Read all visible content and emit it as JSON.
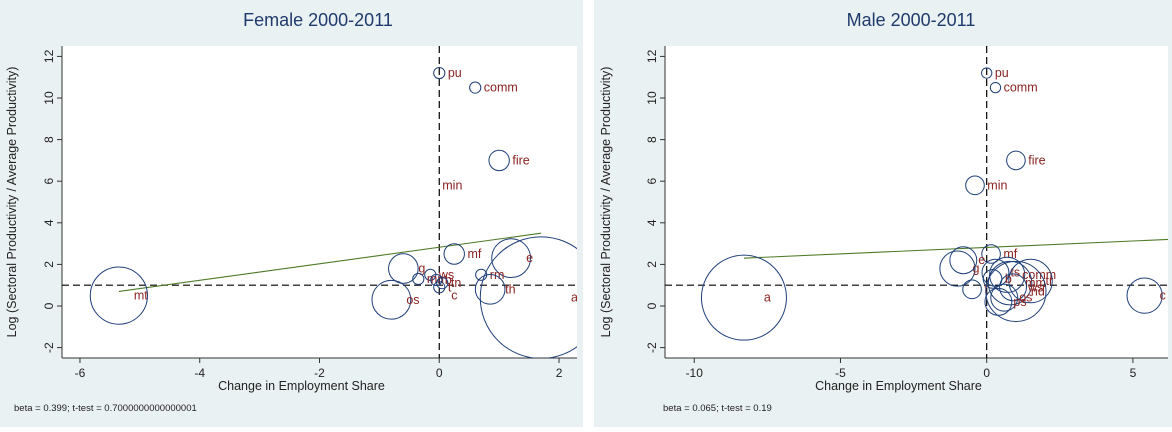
{
  "chart_data": [
    {
      "type": "scatter",
      "title": "Female  2000-2011",
      "xlabel": "Change in Employment Share",
      "ylabel": "Log (Sectoral Productivity / Average Productivity)",
      "xlim": [
        -6.3,
        2.3
      ],
      "ylim": [
        -2.5,
        12.5
      ],
      "xticks": [
        -6,
        -4,
        -2,
        0,
        2
      ],
      "yticks": [
        -2,
        0,
        2,
        4,
        6,
        8,
        10,
        12
      ],
      "reference_lines": {
        "x": 0,
        "y": 1
      },
      "fit_line": {
        "x": [
          -5.35,
          1.7
        ],
        "y": [
          0.7,
          3.5
        ]
      },
      "footnote": "beta = 0.399;  t-test = 0.7000000000000001",
      "points": [
        {
          "label": "pu",
          "x": 0.0,
          "y": 11.2,
          "size": 1
        },
        {
          "label": "comm",
          "x": 0.6,
          "y": 10.5,
          "size": 1
        },
        {
          "label": "fire",
          "x": 1.0,
          "y": 7.0,
          "size": 2
        },
        {
          "label": "min",
          "x": 0.0,
          "y": 5.8,
          "size": 0
        },
        {
          "label": "mf",
          "x": 0.25,
          "y": 2.5,
          "size": 2
        },
        {
          "label": "e",
          "x": 1.2,
          "y": 2.3,
          "size": 4
        },
        {
          "label": "g",
          "x": -0.6,
          "y": 1.8,
          "size": 3
        },
        {
          "label": "ws",
          "x": -0.15,
          "y": 1.5,
          "size": 1
        },
        {
          "label": "mm",
          "x": -0.35,
          "y": 1.3,
          "size": 1
        },
        {
          "label": "b",
          "x": -0.05,
          "y": 1.25,
          "size": 1
        },
        {
          "label": "tn",
          "x": 0.05,
          "y": 1.1,
          "size": 1
        },
        {
          "label": "rm",
          "x": 0.7,
          "y": 1.5,
          "size": 1
        },
        {
          "label": "th",
          "x": 0.85,
          "y": 0.8,
          "size": 3
        },
        {
          "label": "t",
          "x": 0.0,
          "y": 0.9,
          "size": 1
        },
        {
          "label": "c",
          "x": 0.15,
          "y": 0.5,
          "size": 0
        },
        {
          "label": "os",
          "x": -0.8,
          "y": 0.3,
          "size": 4
        },
        {
          "label": "mt",
          "x": -5.35,
          "y": 0.5,
          "size": 6
        },
        {
          "label": "a",
          "x": 1.7,
          "y": 0.4,
          "size": 13
        }
      ]
    },
    {
      "type": "scatter",
      "title": "Male  2000-2011",
      "xlabel": "Change in Employment Share",
      "ylabel": "Log (Sectoral Productivity / Average Productivity)",
      "xlim": [
        -11.0,
        6.2
      ],
      "ylim": [
        -2.5,
        12.5
      ],
      "xticks": [
        -10,
        -5,
        0,
        5
      ],
      "yticks": [
        -2,
        0,
        2,
        4,
        6,
        8,
        10,
        12
      ],
      "reference_lines": {
        "x": 0,
        "y": 1
      },
      "fit_line": {
        "x": [
          -8.3,
          6.2
        ],
        "y": [
          2.3,
          3.2
        ]
      },
      "footnote": "beta = 0.065;  t-test = 0.19",
      "points": [
        {
          "label": "pu",
          "x": 0.0,
          "y": 11.2,
          "size": 1
        },
        {
          "label": "comm",
          "x": 0.3,
          "y": 10.5,
          "size": 1
        },
        {
          "label": "fire",
          "x": 1.0,
          "y": 7.0,
          "size": 2
        },
        {
          "label": "min",
          "x": -0.4,
          "y": 5.8,
          "size": 2
        },
        {
          "label": "mf",
          "x": 0.15,
          "y": 2.5,
          "size": 2
        },
        {
          "label": "g",
          "x": -1.0,
          "y": 1.8,
          "size": 4
        },
        {
          "label": "e",
          "x": -0.8,
          "y": 2.2,
          "size": 3
        },
        {
          "label": "ts",
          "x": 0.3,
          "y": 1.6,
          "size": 3
        },
        {
          "label": "comm",
          "x": 0.7,
          "y": 1.5,
          "size": 4
        },
        {
          "label": "tr",
          "x": 1.5,
          "y": 1.2,
          "size": 5
        },
        {
          "label": "b",
          "x": 0.2,
          "y": 1.3,
          "size": 2
        },
        {
          "label": "mm",
          "x": 0.8,
          "y": 1.1,
          "size": 5
        },
        {
          "label": "t",
          "x": -0.5,
          "y": 0.8,
          "size": 2
        },
        {
          "label": "ws",
          "x": 0.9,
          "y": 0.9,
          "size": 3
        },
        {
          "label": "nd",
          "x": 1.0,
          "y": 0.7,
          "size": 7
        },
        {
          "label": "os",
          "x": 0.6,
          "y": 0.4,
          "size": 3
        },
        {
          "label": "ps",
          "x": 0.4,
          "y": 0.2,
          "size": 3
        },
        {
          "label": "a",
          "x": -8.3,
          "y": 0.4,
          "size": 10
        },
        {
          "label": "c",
          "x": 5.4,
          "y": 0.5,
          "size": 4
        }
      ]
    }
  ]
}
